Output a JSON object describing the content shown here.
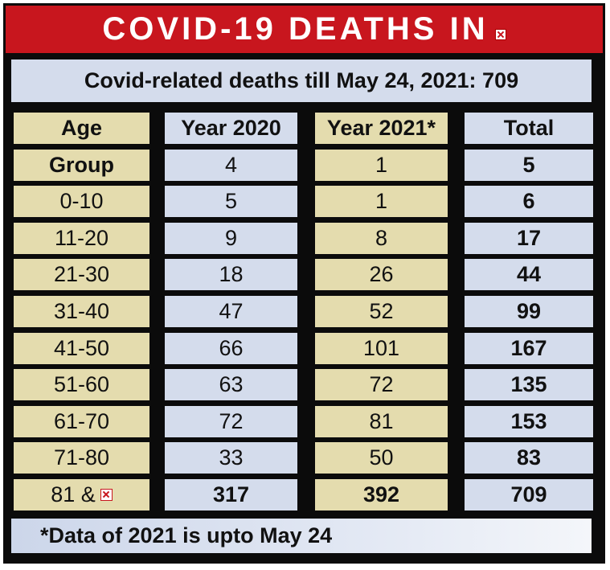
{
  "title": "COVID-19 DEATHS IN",
  "subtitle": "Covid-related deaths till May 24, 2021: 709",
  "footnote": "*Data of 2021 is upto May 24",
  "colors": {
    "title_bg": "#c8161e",
    "tan_column": "#e4dcae",
    "blue_column": "#d4dcec",
    "frame": "#0b0b0b"
  },
  "chart_data": {
    "type": "table",
    "columns": [
      "Age",
      "Year 2020",
      "Year 2021*",
      "Total"
    ],
    "rows": [
      [
        "Group",
        "4",
        "1",
        "5"
      ],
      [
        "0-10",
        "5",
        "1",
        "6"
      ],
      [
        "11-20",
        "9",
        "8",
        "17"
      ],
      [
        "21-30",
        "18",
        "26",
        "44"
      ],
      [
        "31-40",
        "47",
        "52",
        "99"
      ],
      [
        "41-50",
        "66",
        "101",
        "167"
      ],
      [
        "51-60",
        "63",
        "72",
        "135"
      ],
      [
        "61-70",
        "72",
        "81",
        "153"
      ],
      [
        "71-80",
        "33",
        "50",
        "83"
      ],
      [
        "81 &",
        "317",
        "392",
        "709"
      ]
    ]
  }
}
